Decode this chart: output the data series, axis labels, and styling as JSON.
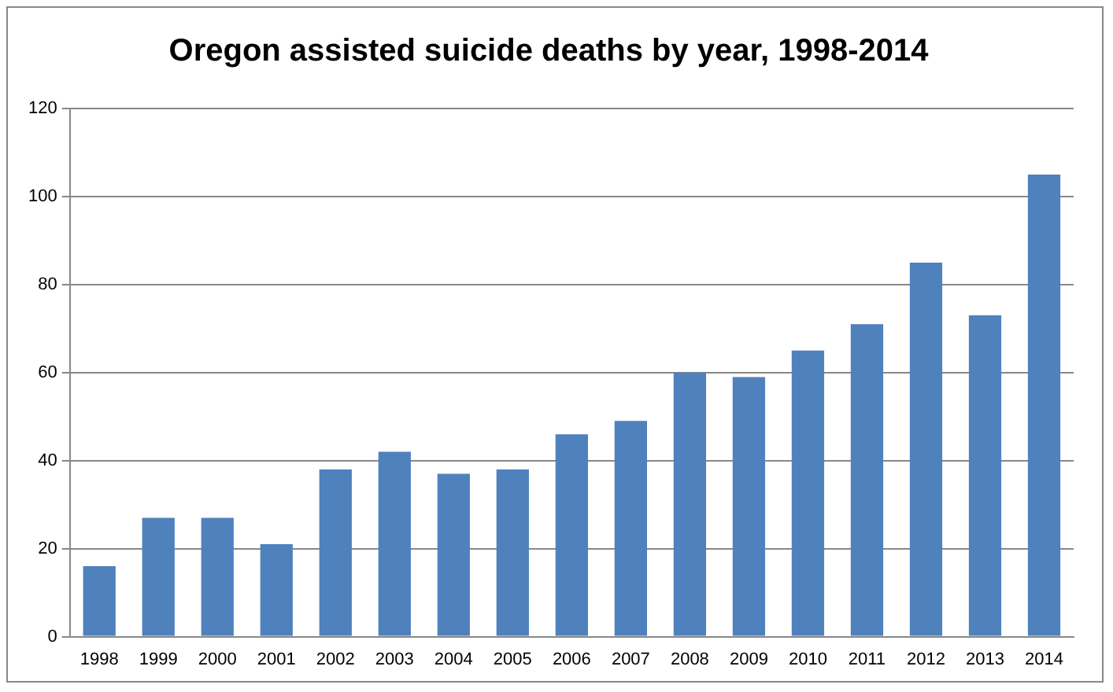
{
  "chart_data": {
    "type": "bar",
    "title": "Oregon assisted suicide deaths by year, 1998-2014",
    "categories": [
      "1998",
      "1999",
      "2000",
      "2001",
      "2002",
      "2003",
      "2004",
      "2005",
      "2006",
      "2007",
      "2008",
      "2009",
      "2010",
      "2011",
      "2012",
      "2013",
      "2014"
    ],
    "values": [
      16,
      27,
      27,
      21,
      38,
      42,
      37,
      38,
      46,
      49,
      60,
      59,
      65,
      71,
      85,
      73,
      105
    ],
    "color": "#4f81bd",
    "ylim": [
      0,
      120
    ],
    "yticks": [
      0,
      20,
      40,
      60,
      80,
      100,
      120
    ],
    "grid": "y"
  }
}
